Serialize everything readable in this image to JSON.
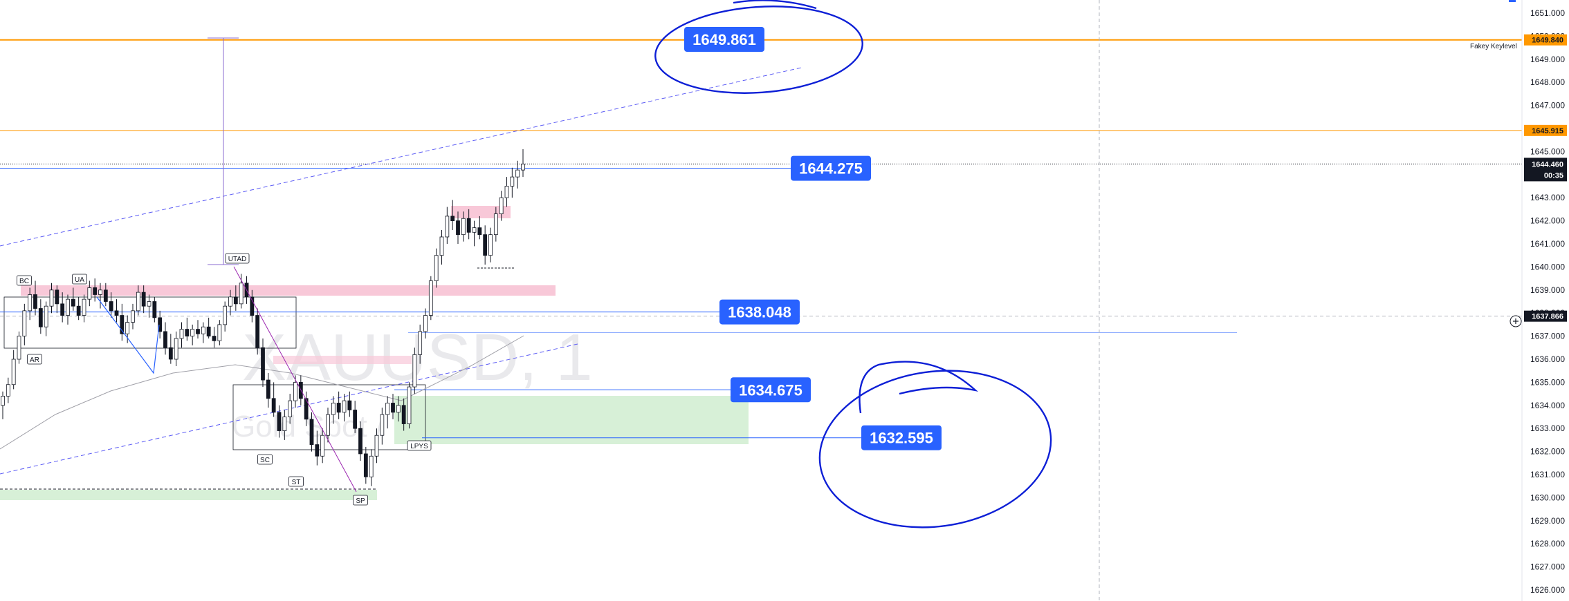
{
  "chart_data": {
    "type": "candlestick",
    "symbol_watermark": "XAUUSD, 1",
    "description_watermark": "Gold Spot / U.S. Dollar",
    "y_axis": {
      "ylim": [
        1626.0,
        1651.5
      ],
      "ticks": [
        1651,
        1650,
        1649,
        1648,
        1647,
        1646,
        1645,
        1644,
        1643,
        1642,
        1641,
        1640,
        1639,
        1638,
        1637,
        1636,
        1635,
        1634,
        1633,
        1632,
        1631,
        1630,
        1629,
        1628,
        1627,
        1626
      ],
      "tick_labels": [
        "1651.000",
        "1650.000",
        "1649.000",
        "1648.000",
        "1647.000",
        "1646.000",
        "1645.000",
        "1644.000",
        "1643.000",
        "1642.000",
        "1641.000",
        "1640.000",
        "1639.000",
        "1638.000",
        "1637.000",
        "1636.000",
        "1635.000",
        "1634.000",
        "1633.000",
        "1632.000",
        "1631.000",
        "1630.000",
        "1629.000",
        "1628.000",
        "1627.000",
        "1626.000"
      ]
    },
    "current_price": {
      "value": 1644.46,
      "label": "1644.460",
      "countdown": "00:35",
      "color": "#131722"
    },
    "axis_badges": [
      {
        "value": 1649.84,
        "label": "1649.840",
        "color": "#ff9800",
        "text_color": "#131722"
      },
      {
        "value": 1645.915,
        "label": "1645.915",
        "color": "#ff9800",
        "text_color": "#131722"
      },
      {
        "value": 1637.866,
        "label": "1637.866",
        "color": "#131722",
        "text_color": "#ffffff"
      }
    ],
    "price_labels": [
      {
        "value": 1649.861,
        "label": "1649.861",
        "color": "#2962ff"
      },
      {
        "value": 1644.275,
        "label": "1644.275",
        "color": "#2962ff"
      },
      {
        "value": 1638.048,
        "label": "1638.048",
        "color": "#2962ff"
      },
      {
        "value": 1634.675,
        "label": "1634.675",
        "color": "#2962ff"
      },
      {
        "value": 1632.595,
        "label": "1632.595",
        "color": "#2962ff"
      }
    ],
    "key_level": {
      "value": 1649.84,
      "label": "Fakey Keylevel",
      "color": "#ff9800"
    },
    "resistance_level": {
      "value": 1645.915,
      "color": "#ff9800"
    },
    "wyckoff_labels": [
      "BC",
      "UA",
      "AR",
      "UTAD",
      "SC",
      "ST",
      "SP",
      "LPYS"
    ],
    "colors": {
      "up": "#131722",
      "down": "#131722",
      "accent_blue": "#2962ff",
      "orange": "#ff9800",
      "pink_zone": "#f8c8d8",
      "green_zone": "#d7f0d7",
      "ellipse": "#0d1fd6",
      "grid_dash": "#b2b5be"
    },
    "candles": [
      [
        1634.0,
        1634.6,
        1633.4,
        1634.4
      ],
      [
        1634.4,
        1635.2,
        1634.1,
        1634.9
      ],
      [
        1634.9,
        1636.4,
        1634.7,
        1636.0
      ],
      [
        1636.0,
        1637.2,
        1635.8,
        1637.0
      ],
      [
        1637.0,
        1638.4,
        1636.6,
        1638.1
      ],
      [
        1638.1,
        1639.1,
        1637.7,
        1638.8
      ],
      [
        1638.8,
        1639.4,
        1637.9,
        1638.2
      ],
      [
        1638.2,
        1638.6,
        1637.1,
        1637.4
      ],
      [
        1637.4,
        1638.5,
        1637.0,
        1638.3
      ],
      [
        1638.3,
        1639.3,
        1638.0,
        1639.0
      ],
      [
        1639.0,
        1639.2,
        1638.0,
        1638.4
      ],
      [
        1638.4,
        1638.9,
        1637.6,
        1637.9
      ],
      [
        1637.9,
        1638.8,
        1637.5,
        1638.6
      ],
      [
        1638.6,
        1639.1,
        1638.1,
        1638.3
      ],
      [
        1638.3,
        1638.7,
        1637.7,
        1637.9
      ],
      [
        1637.9,
        1638.8,
        1637.6,
        1638.6
      ],
      [
        1638.6,
        1639.4,
        1638.3,
        1639.1
      ],
      [
        1639.1,
        1639.5,
        1638.5,
        1638.8
      ],
      [
        1638.8,
        1639.3,
        1638.2,
        1639.0
      ],
      [
        1639.0,
        1639.3,
        1638.3,
        1638.5
      ],
      [
        1638.5,
        1638.9,
        1637.8,
        1638.1
      ],
      [
        1638.1,
        1638.6,
        1637.6,
        1637.9
      ],
      [
        1637.9,
        1638.4,
        1636.8,
        1637.1
      ],
      [
        1637.1,
        1637.9,
        1636.7,
        1637.6
      ],
      [
        1637.6,
        1638.4,
        1637.3,
        1638.1
      ],
      [
        1638.1,
        1639.2,
        1637.9,
        1638.9
      ],
      [
        1638.9,
        1639.2,
        1638.0,
        1638.3
      ],
      [
        1638.3,
        1638.8,
        1637.8,
        1638.5
      ],
      [
        1638.5,
        1638.7,
        1637.6,
        1637.8
      ],
      [
        1637.8,
        1638.1,
        1636.9,
        1637.2
      ],
      [
        1637.2,
        1637.6,
        1636.2,
        1636.5
      ],
      [
        1636.5,
        1637.1,
        1635.8,
        1636.0
      ],
      [
        1636.0,
        1637.2,
        1635.7,
        1636.9
      ],
      [
        1636.9,
        1637.6,
        1636.5,
        1637.3
      ],
      [
        1637.3,
        1637.8,
        1636.8,
        1637.0
      ],
      [
        1637.0,
        1637.5,
        1636.6,
        1637.3
      ],
      [
        1637.3,
        1637.7,
        1636.9,
        1637.1
      ],
      [
        1637.1,
        1637.6,
        1636.7,
        1637.4
      ],
      [
        1637.4,
        1637.8,
        1636.9,
        1637.0
      ],
      [
        1637.0,
        1637.4,
        1636.5,
        1636.8
      ],
      [
        1636.8,
        1637.7,
        1636.6,
        1637.5
      ],
      [
        1637.5,
        1638.5,
        1637.2,
        1638.3
      ],
      [
        1638.3,
        1639.0,
        1637.9,
        1638.7
      ],
      [
        1638.7,
        1639.2,
        1638.1,
        1638.4
      ],
      [
        1638.4,
        1639.7,
        1638.2,
        1639.3
      ],
      [
        1639.3,
        1639.6,
        1638.4,
        1638.7
      ],
      [
        1638.7,
        1639.0,
        1637.6,
        1637.9
      ],
      [
        1637.9,
        1638.2,
        1636.2,
        1636.5
      ],
      [
        1636.5,
        1636.9,
        1634.8,
        1635.1
      ],
      [
        1635.1,
        1635.4,
        1633.9,
        1634.3
      ],
      [
        1634.3,
        1635.0,
        1633.5,
        1633.7
      ],
      [
        1633.7,
        1634.0,
        1632.6,
        1632.9
      ],
      [
        1632.9,
        1633.8,
        1632.5,
        1633.5
      ],
      [
        1633.5,
        1634.5,
        1633.2,
        1634.2
      ],
      [
        1634.2,
        1635.3,
        1633.9,
        1635.0
      ],
      [
        1635.0,
        1635.3,
        1634.0,
        1634.3
      ],
      [
        1634.3,
        1634.6,
        1633.1,
        1633.4
      ],
      [
        1633.4,
        1633.7,
        1632.0,
        1632.3
      ],
      [
        1632.3,
        1632.9,
        1631.4,
        1631.8
      ],
      [
        1631.8,
        1633.0,
        1631.5,
        1632.7
      ],
      [
        1632.7,
        1633.9,
        1632.4,
        1633.6
      ],
      [
        1633.6,
        1634.4,
        1633.2,
        1634.1
      ],
      [
        1634.1,
        1634.6,
        1633.4,
        1633.7
      ],
      [
        1633.7,
        1634.5,
        1633.3,
        1634.2
      ],
      [
        1634.2,
        1634.6,
        1633.5,
        1633.8
      ],
      [
        1633.8,
        1634.2,
        1632.8,
        1633.0
      ],
      [
        1633.0,
        1633.3,
        1631.6,
        1631.9
      ],
      [
        1631.9,
        1632.2,
        1630.6,
        1630.9
      ],
      [
        1630.9,
        1632.1,
        1630.5,
        1631.8
      ],
      [
        1631.8,
        1633.0,
        1631.5,
        1632.7
      ],
      [
        1632.7,
        1633.9,
        1632.3,
        1633.6
      ],
      [
        1633.6,
        1634.4,
        1633.0,
        1634.1
      ],
      [
        1634.1,
        1634.5,
        1633.4,
        1633.7
      ],
      [
        1633.7,
        1634.4,
        1633.3,
        1634.0
      ],
      [
        1634.0,
        1634.3,
        1632.9,
        1633.2
      ],
      [
        1633.2,
        1635.0,
        1633.0,
        1634.8
      ],
      [
        1634.8,
        1636.5,
        1634.5,
        1636.2
      ],
      [
        1636.2,
        1637.5,
        1635.8,
        1637.2
      ],
      [
        1637.2,
        1638.2,
        1636.9,
        1637.9
      ],
      [
        1637.9,
        1639.6,
        1637.7,
        1639.4
      ],
      [
        1639.4,
        1640.8,
        1639.1,
        1640.5
      ],
      [
        1640.5,
        1641.6,
        1640.1,
        1641.3
      ],
      [
        1641.3,
        1642.6,
        1641.0,
        1642.2
      ],
      [
        1642.2,
        1642.9,
        1641.6,
        1642.0
      ],
      [
        1642.0,
        1642.4,
        1641.0,
        1641.4
      ],
      [
        1641.4,
        1642.4,
        1641.1,
        1642.1
      ],
      [
        1642.1,
        1642.5,
        1641.2,
        1641.5
      ],
      [
        1641.5,
        1642.0,
        1640.9,
        1641.7
      ],
      [
        1641.7,
        1642.2,
        1641.2,
        1641.4
      ],
      [
        1641.4,
        1641.8,
        1640.1,
        1640.5
      ],
      [
        1640.5,
        1641.7,
        1640.2,
        1641.4
      ],
      [
        1641.4,
        1642.6,
        1641.1,
        1642.3
      ],
      [
        1642.3,
        1643.3,
        1642.0,
        1643.0
      ],
      [
        1643.0,
        1643.9,
        1642.6,
        1643.5
      ],
      [
        1643.5,
        1644.3,
        1643.0,
        1643.9
      ],
      [
        1643.9,
        1644.6,
        1643.4,
        1644.2
      ],
      [
        1644.2,
        1645.1,
        1643.9,
        1644.46
      ]
    ]
  }
}
